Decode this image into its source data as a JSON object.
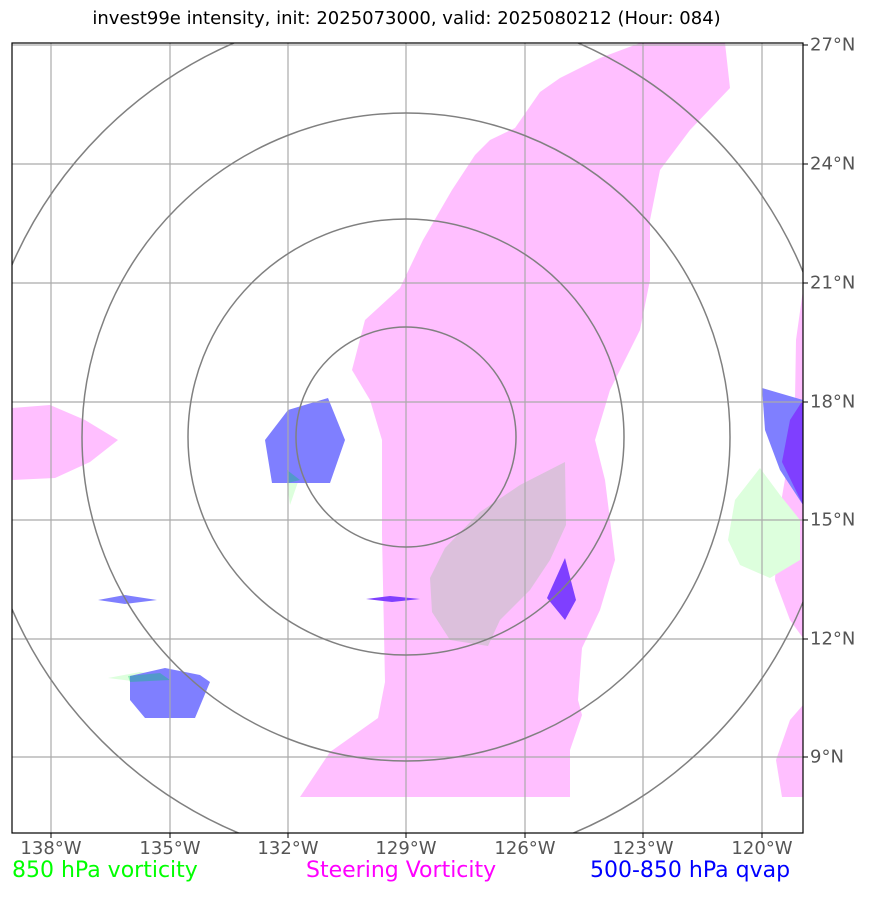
{
  "title": "invest99e intensity, init: 2025073000, valid: 2025080212 (Hour: 084)",
  "map": {
    "lon_ticks": [
      "138°W",
      "135°W",
      "132°W",
      "129°W",
      "126°W",
      "123°W",
      "120°W"
    ],
    "lat_ticks": [
      "27°N",
      "24°N",
      "21°N",
      "18°N",
      "15°N",
      "12°N",
      "9°N"
    ],
    "center": {
      "lon": "129°W",
      "lat": "17.3°N"
    },
    "range_rings": 4
  },
  "legend": [
    {
      "label": "850 hPa vorticity",
      "color": "#00ff00"
    },
    {
      "label": "Steering Vorticity",
      "color": "#ff00ff"
    },
    {
      "label": "500-850 hPa qvap",
      "color": "#0000ff"
    }
  ],
  "colors": {
    "steering": "#ffbfff",
    "qvap": "#7f7fff",
    "qvap_dense": "#7f3fff",
    "vort850": "#ddffdd",
    "overlap": "#dcc0dc",
    "grid": "#aaaaaa",
    "rings": "#808080"
  }
}
